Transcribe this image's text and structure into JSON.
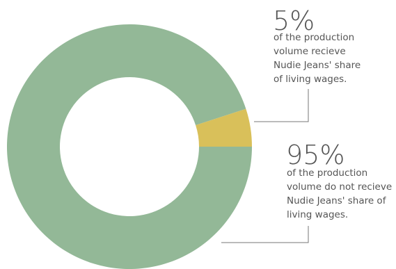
{
  "chart_data": {
    "type": "donut",
    "categories": [
      "of the production volume recieve Nudie Jeans' share of living wages.",
      "of the production volume do not recieve Nudie Jeans' share of living wages."
    ],
    "values": [
      5,
      95
    ],
    "value_labels": [
      "5%",
      "95%"
    ],
    "colors": [
      "#d9c05a",
      "#93b897"
    ]
  }
}
